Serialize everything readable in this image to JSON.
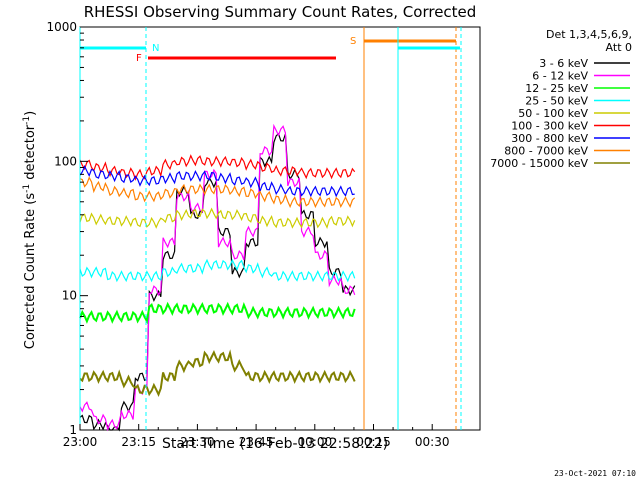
{
  "chart_data": {
    "type": "line",
    "title": "RHESSI Observing Summary Count Rates, Corrected",
    "xlabel": "Start Time (16-Feb-13 22:58:22)",
    "ylabel": "Corrected Count Rate (s",
    "ylabel_sup1": "-1",
    "ylabel_mid": " detector",
    "ylabel_sup2": "-1",
    "ylabel_end": ")",
    "y_scale": "log",
    "ylim": [
      1,
      1000
    ],
    "x_ticks": [
      "23:00",
      "23:15",
      "23:30",
      "23:45",
      "00:00",
      "00:15",
      "00:30"
    ],
    "y_ticks": [
      "1",
      "10",
      "100",
      "1000"
    ],
    "legend_header": [
      "Det 1,3,4,5,6,9,",
      "Att 0"
    ],
    "footer_date": "23-Oct-2021 07:10",
    "markers": {
      "N": "N",
      "F": "F",
      "S": "S"
    },
    "series": [
      {
        "name": "3 - 6 keV",
        "color": "#000000",
        "values": [
          1.2,
          1.1,
          1.0,
          1.5,
          2.5,
          10,
          20,
          60,
          40,
          70,
          30,
          15,
          25,
          100,
          150,
          80,
          40,
          25,
          15,
          11
        ]
      },
      {
        "name": "6 - 12 keV",
        "color": "#ff00ff",
        "values": [
          1.5,
          1.2,
          1.1,
          1.3,
          2.0,
          11,
          25,
          55,
          45,
          80,
          25,
          20,
          30,
          120,
          170,
          70,
          30,
          20,
          13,
          11
        ]
      },
      {
        "name": "12 - 25 keV",
        "color": "#00ff00",
        "values": [
          7,
          7,
          7,
          7,
          7,
          8,
          8,
          8,
          8,
          8,
          8,
          8,
          7.5,
          7.5,
          7.5,
          7.5,
          7.5,
          7.5,
          7.5,
          7.5
        ]
      },
      {
        "name": "25 - 50 keV",
        "color": "#00ffff",
        "values": [
          15,
          15,
          14,
          14,
          14,
          14,
          15,
          16,
          16,
          17,
          17,
          17,
          16,
          15,
          14,
          14,
          14,
          14,
          14,
          14
        ]
      },
      {
        "name": "50 - 100 keV",
        "color": "#cccc00",
        "values": [
          38,
          37,
          36,
          36,
          35,
          35,
          38,
          40,
          41,
          41,
          40,
          40,
          38,
          36,
          35,
          35,
          35,
          35,
          36,
          36
        ]
      },
      {
        "name": "100 - 300 keV",
        "color": "#ff0000",
        "values": [
          95,
          90,
          85,
          82,
          80,
          85,
          95,
          100,
          102,
          100,
          100,
          98,
          95,
          90,
          85,
          85,
          82,
          82,
          82,
          82
        ]
      },
      {
        "name": "300 - 800 keV",
        "color": "#0000ff",
        "values": [
          85,
          80,
          78,
          75,
          72,
          72,
          75,
          78,
          78,
          78,
          75,
          72,
          70,
          65,
          62,
          60,
          60,
          60,
          60,
          60
        ]
      },
      {
        "name": "800 - 7000 keV",
        "color": "#ff8000",
        "values": [
          70,
          65,
          60,
          58,
          55,
          55,
          58,
          62,
          62,
          62,
          62,
          60,
          58,
          55,
          52,
          50,
          50,
          50,
          50,
          50
        ]
      },
      {
        "name": "7000 - 15000 keV",
        "color": "#808000",
        "values": [
          2.5,
          2.5,
          2.5,
          2.3,
          2.0,
          2.0,
          2.5,
          3.0,
          3.2,
          3.5,
          3.5,
          3.0,
          2.5,
          2.5,
          2.5,
          2.5,
          2.5,
          2.5,
          2.5,
          2.5
        ]
      }
    ]
  }
}
